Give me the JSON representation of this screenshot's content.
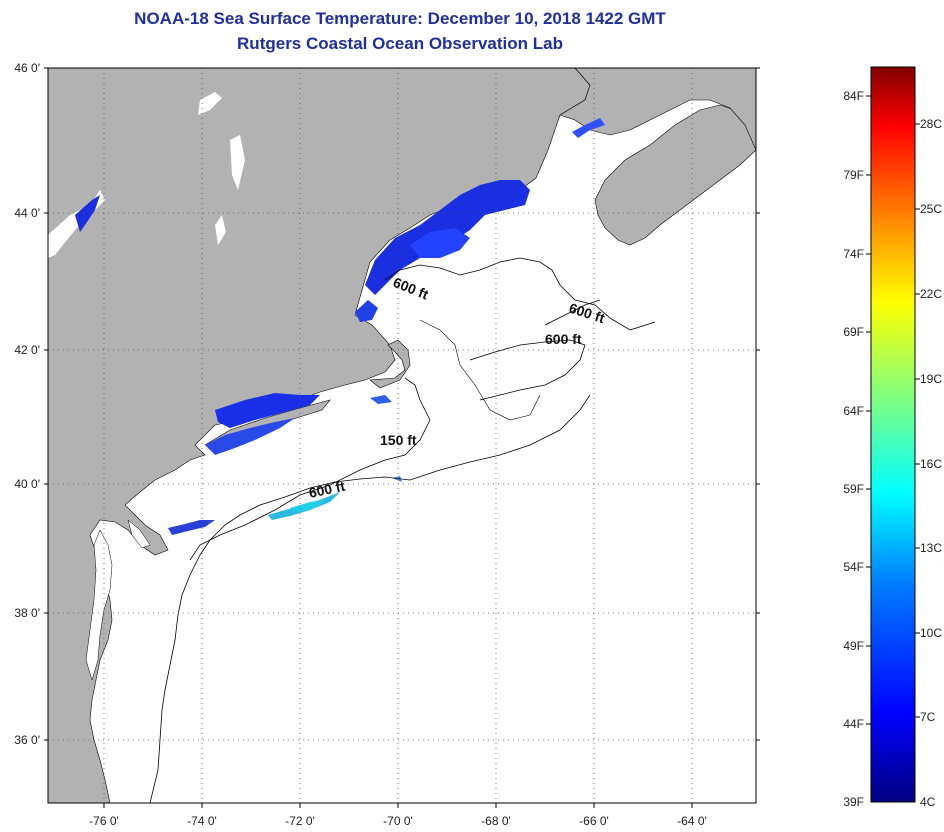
{
  "header": {
    "title_line1": "NOAA-18 Sea Surface Temperature:  December 10, 2018 1422 GMT",
    "title_line2": "Rutgers Coastal Ocean Observation Lab"
  },
  "map": {
    "lat_labels": [
      "46 0'",
      "44 0'",
      "42 0'",
      "40 0'",
      "38 0'",
      "36 0'"
    ],
    "lon_labels": [
      "-76 0'",
      "-74 0'",
      "-72 0'",
      "-70 0'",
      "-68 0'",
      "-66 0'",
      "-64 0'"
    ],
    "contour_labels": [
      "600 ft",
      "600 ft",
      "600 ft",
      "150 ft",
      "600 ft"
    ],
    "colors": {
      "land": "#b2b2b2",
      "ocean": "#ffffff",
      "grid": "#555555"
    }
  },
  "colorbar": {
    "f_labels": [
      "84F",
      "79F",
      "74F",
      "69F",
      "64F",
      "59F",
      "54F",
      "49F",
      "44F",
      "39F"
    ],
    "c_labels": [
      "28C",
      "25C",
      "22C",
      "19C",
      "16C",
      "13C",
      "10C",
      "7C",
      "4C"
    ],
    "colors": [
      "#800000",
      "#ff0000",
      "#ff8000",
      "#ffff00",
      "#80ff80",
      "#00ffff",
      "#0080ff",
      "#0000ff",
      "#000080"
    ]
  }
}
